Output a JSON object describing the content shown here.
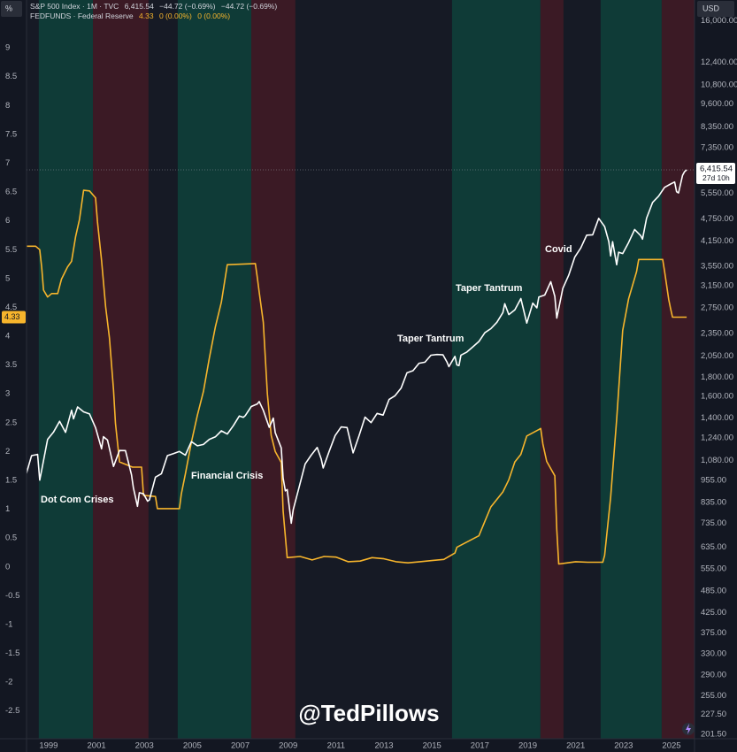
{
  "chart_data": {
    "type": "line",
    "y_axis_label": "%",
    "y2_axis_label": "USD",
    "watermark": "@TedPillows",
    "xlim": [
      1998.08,
      2025.96
    ],
    "xticks": [
      1999,
      2001,
      2003,
      2005,
      2007,
      2009,
      2011,
      2013,
      2015,
      2017,
      2019,
      2021,
      2023,
      2025
    ],
    "ylim": [
      -2.98,
      9.83
    ],
    "yticks": [
      9,
      8.5,
      8,
      7.5,
      7,
      6.5,
      6,
      5.5,
      5,
      4.5,
      4,
      3.5,
      3,
      2.5,
      2,
      1.5,
      1,
      0.5,
      0,
      -0.5,
      -1,
      -1.5,
      -2,
      -2.5
    ],
    "y2lim": [
      196,
      18180
    ],
    "y2log": true,
    "y2ticks": [
      {
        "value": 16000,
        "label": "16,000.00"
      },
      {
        "value": 12400,
        "label": "12,400.00"
      },
      {
        "value": 10800,
        "label": "10,800.00"
      },
      {
        "value": 9600,
        "label": "9,600.00"
      },
      {
        "value": 8350,
        "label": "8,350.00"
      },
      {
        "value": 7350,
        "label": "7,350.00"
      },
      {
        "value": 5550,
        "label": "5,550.00"
      },
      {
        "value": 4750,
        "label": "4,750.00"
      },
      {
        "value": 4150,
        "label": "4,150.00"
      },
      {
        "value": 3550,
        "label": "3,550.00"
      },
      {
        "value": 3150,
        "label": "3,150.00"
      },
      {
        "value": 2750,
        "label": "2,750.00"
      },
      {
        "value": 2350,
        "label": "2,350.00"
      },
      {
        "value": 2050,
        "label": "2,050.00"
      },
      {
        "value": 1800,
        "label": "1,800.00"
      },
      {
        "value": 1600,
        "label": "1,600.00"
      },
      {
        "value": 1400,
        "label": "1,400.00"
      },
      {
        "value": 1240,
        "label": "1,240.00"
      },
      {
        "value": 1080,
        "label": "1,080.00"
      },
      {
        "value": 955,
        "label": "955.00"
      },
      {
        "value": 835,
        "label": "835.00"
      },
      {
        "value": 735,
        "label": "735.00"
      },
      {
        "value": 635,
        "label": "635.00"
      },
      {
        "value": 555,
        "label": "555.00"
      },
      {
        "value": 485,
        "label": "485.00"
      },
      {
        "value": 425,
        "label": "425.00"
      },
      {
        "value": 375,
        "label": "375.00"
      },
      {
        "value": 330,
        "label": "330.00"
      },
      {
        "value": 290,
        "label": "290.00"
      },
      {
        "value": 255,
        "label": "255.00"
      },
      {
        "value": 227.5,
        "label": "227.50"
      },
      {
        "value": 201.5,
        "label": "201.50"
      }
    ],
    "bands": [
      {
        "start": 1998.59,
        "end": 2000.85,
        "color": "#0f3b37"
      },
      {
        "start": 2000.85,
        "end": 2003.17,
        "color": "#3b1a25"
      },
      {
        "start": 2004.39,
        "end": 2007.46,
        "color": "#0f3b37"
      },
      {
        "start": 2007.46,
        "end": 2009.3,
        "color": "#3b1a25"
      },
      {
        "start": 2015.84,
        "end": 2019.53,
        "color": "#0f3b37"
      },
      {
        "start": 2019.53,
        "end": 2020.49,
        "color": "#3b1a25"
      },
      {
        "start": 2022.04,
        "end": 2024.59,
        "color": "#0f3b37"
      },
      {
        "start": 2024.59,
        "end": 2025.96,
        "color": "#3b1a25"
      }
    ],
    "annotations": [
      "Dot Com Crises",
      "Financial Crisis",
      "Taper Tantrum",
      "Taper Tantrum",
      "Covid"
    ],
    "series": [
      {
        "name": "FEDFUNDS · Federal Reserve",
        "color": "#f7b52c",
        "axis": "y",
        "legend_values": [
          "4.33",
          "0 (0.00%)",
          "0 (0.00%)"
        ],
        "price_tag": 4.33,
        "x": [
          1998.04,
          1998.46,
          1998.63,
          1998.71,
          1998.79,
          1998.96,
          1999.13,
          1999.38,
          1999.54,
          1999.79,
          1999.96,
          2000.13,
          2000.29,
          2000.46,
          2000.71,
          2000.96,
          2001.04,
          2001.21,
          2001.38,
          2001.54,
          2001.71,
          2001.79,
          2001.96,
          2002.5,
          2002.88,
          2002.96,
          2003.46,
          2003.54,
          2004.46,
          2004.54,
          2004.71,
          2004.96,
          2005.21,
          2005.46,
          2005.71,
          2005.96,
          2006.21,
          2006.46,
          2007.63,
          2007.71,
          2007.79,
          2007.96,
          2008.13,
          2008.29,
          2008.46,
          2008.71,
          2008.79,
          2008.96,
          2009.5,
          2010,
          2010.5,
          2011,
          2011.5,
          2012,
          2012.5,
          2013,
          2013.5,
          2014,
          2014.5,
          2015,
          2015.5,
          2015.96,
          2016.04,
          2016.96,
          2017.21,
          2017.46,
          2017.96,
          2018.21,
          2018.46,
          2018.71,
          2018.96,
          2019.46,
          2019.54,
          2019.63,
          2019.79,
          2020.13,
          2020.21,
          2020.29,
          2021,
          2021.5,
          2022.13,
          2022.21,
          2022.46,
          2022.71,
          2022.96,
          2023.21,
          2023.54,
          2023.63,
          2024.63,
          2024.71,
          2024.88,
          2024.96,
          2025.04,
          2025.63
        ],
        "values": [
          5.56,
          5.56,
          5.5,
          5.2,
          4.8,
          4.68,
          4.74,
          4.74,
          4.99,
          5.2,
          5.3,
          5.73,
          6.02,
          6.53,
          6.52,
          6.4,
          5.98,
          5.31,
          4.51,
          3.97,
          3.07,
          2.49,
          1.82,
          1.73,
          1.73,
          1.24,
          1.22,
          1.01,
          1.01,
          1.26,
          1.61,
          2.16,
          2.63,
          3.04,
          3.62,
          4.16,
          4.59,
          5.24,
          5.26,
          5.02,
          4.76,
          4.24,
          3.0,
          2.28,
          2.0,
          1.81,
          0.97,
          0.16,
          0.18,
          0.12,
          0.18,
          0.17,
          0.09,
          0.1,
          0.16,
          0.14,
          0.09,
          0.07,
          0.09,
          0.11,
          0.13,
          0.24,
          0.34,
          0.54,
          0.79,
          1.04,
          1.3,
          1.51,
          1.82,
          1.95,
          2.27,
          2.38,
          2.4,
          2.13,
          1.83,
          1.58,
          0.65,
          0.05,
          0.09,
          0.08,
          0.08,
          0.2,
          1.21,
          2.56,
          4.1,
          4.65,
          5.12,
          5.33,
          5.33,
          5.13,
          4.64,
          4.48,
          4.33,
          4.33
        ]
      },
      {
        "name": "S&P 500 Index · 1M · TVC",
        "color": "#ffffff",
        "axis": "y2",
        "legend_values": [
          "6,415.54",
          "−44.72 (−0.69%)",
          "−44.72 (−0.69%)"
        ],
        "price_tag": {
          "value": 6415.54,
          "label": "6,415.54",
          "countdown": "27d 10h"
        },
        "x": [
          1998.04,
          1998.29,
          1998.54,
          1998.63,
          1998.71,
          1998.96,
          1999.21,
          1999.46,
          1999.71,
          1999.96,
          2000.04,
          2000.21,
          2000.46,
          2000.71,
          2000.96,
          2001.21,
          2001.29,
          2001.46,
          2001.71,
          2001.96,
          2002.21,
          2002.46,
          2002.54,
          2002.71,
          2002.79,
          2002.96,
          2003.13,
          2003.21,
          2003.46,
          2003.71,
          2003.96,
          2004.21,
          2004.46,
          2004.71,
          2004.96,
          2005.21,
          2005.46,
          2005.71,
          2005.96,
          2006.21,
          2006.46,
          2006.71,
          2006.96,
          2007.13,
          2007.21,
          2007.46,
          2007.71,
          2007.79,
          2007.96,
          2008.21,
          2008.38,
          2008.46,
          2008.71,
          2008.79,
          2008.88,
          2008.96,
          2009.13,
          2009.21,
          2009.46,
          2009.71,
          2009.96,
          2010.21,
          2010.38,
          2010.46,
          2010.71,
          2010.96,
          2011.21,
          2011.46,
          2011.71,
          2011.96,
          2012.21,
          2012.46,
          2012.71,
          2012.96,
          2013.21,
          2013.46,
          2013.71,
          2013.96,
          2014.21,
          2014.46,
          2014.71,
          2014.96,
          2015.21,
          2015.46,
          2015.63,
          2015.71,
          2015.96,
          2016.04,
          2016.13,
          2016.21,
          2016.46,
          2016.71,
          2016.96,
          2017.21,
          2017.46,
          2017.71,
          2017.96,
          2018.04,
          2018.21,
          2018.46,
          2018.71,
          2018.96,
          2019.21,
          2019.38,
          2019.46,
          2019.71,
          2019.96,
          2020.13,
          2020.21,
          2020.46,
          2020.71,
          2020.96,
          2021.21,
          2021.46,
          2021.71,
          2021.96,
          2022.21,
          2022.38,
          2022.46,
          2022.54,
          2022.71,
          2022.79,
          2022.96,
          2023.21,
          2023.46,
          2023.71,
          2023.79,
          2023.96,
          2024.21,
          2024.46,
          2024.71,
          2024.96,
          2025.13,
          2025.21,
          2025.29,
          2025.46,
          2025.54,
          2025.63
        ],
        "values": [
          980,
          1112,
          1121,
          957,
          1017,
          1229,
          1286,
          1373,
          1283,
          1469,
          1394,
          1499,
          1455,
          1436,
          1320,
          1160,
          1249,
          1224,
          1041,
          1148,
          1147,
          990,
          912,
          815,
          886,
          880,
          841,
          848,
          975,
          996,
          1112,
          1126,
          1141,
          1115,
          1212,
          1181,
          1191,
          1229,
          1248,
          1295,
          1270,
          1336,
          1418,
          1407,
          1421,
          1503,
          1527,
          1549,
          1468,
          1323,
          1400,
          1280,
          1166,
          969,
          896,
          903,
          735,
          798,
          919,
          1057,
          1115,
          1169,
          1089,
          1031,
          1141,
          1258,
          1326,
          1321,
          1131,
          1258,
          1408,
          1362,
          1441,
          1426,
          1569,
          1606,
          1682,
          1848,
          1872,
          1960,
          1972,
          2059,
          2068,
          2063,
          1972,
          1920,
          2044,
          1940,
          1932,
          2060,
          2099,
          2168,
          2239,
          2363,
          2423,
          2519,
          2674,
          2824,
          2641,
          2718,
          2914,
          2507,
          2834,
          2752,
          2942,
          2977,
          3231,
          2954,
          2585,
          3100,
          3363,
          3756,
          3973,
          4298,
          4308,
          4766,
          4530,
          4132,
          3785,
          4130,
          3586,
          3872,
          3840,
          4109,
          4450,
          4288,
          4194,
          4770,
          5254,
          5460,
          5762,
          5882,
          5955,
          5612,
          5569,
          6205,
          6339,
          6415.54
        ]
      }
    ]
  }
}
